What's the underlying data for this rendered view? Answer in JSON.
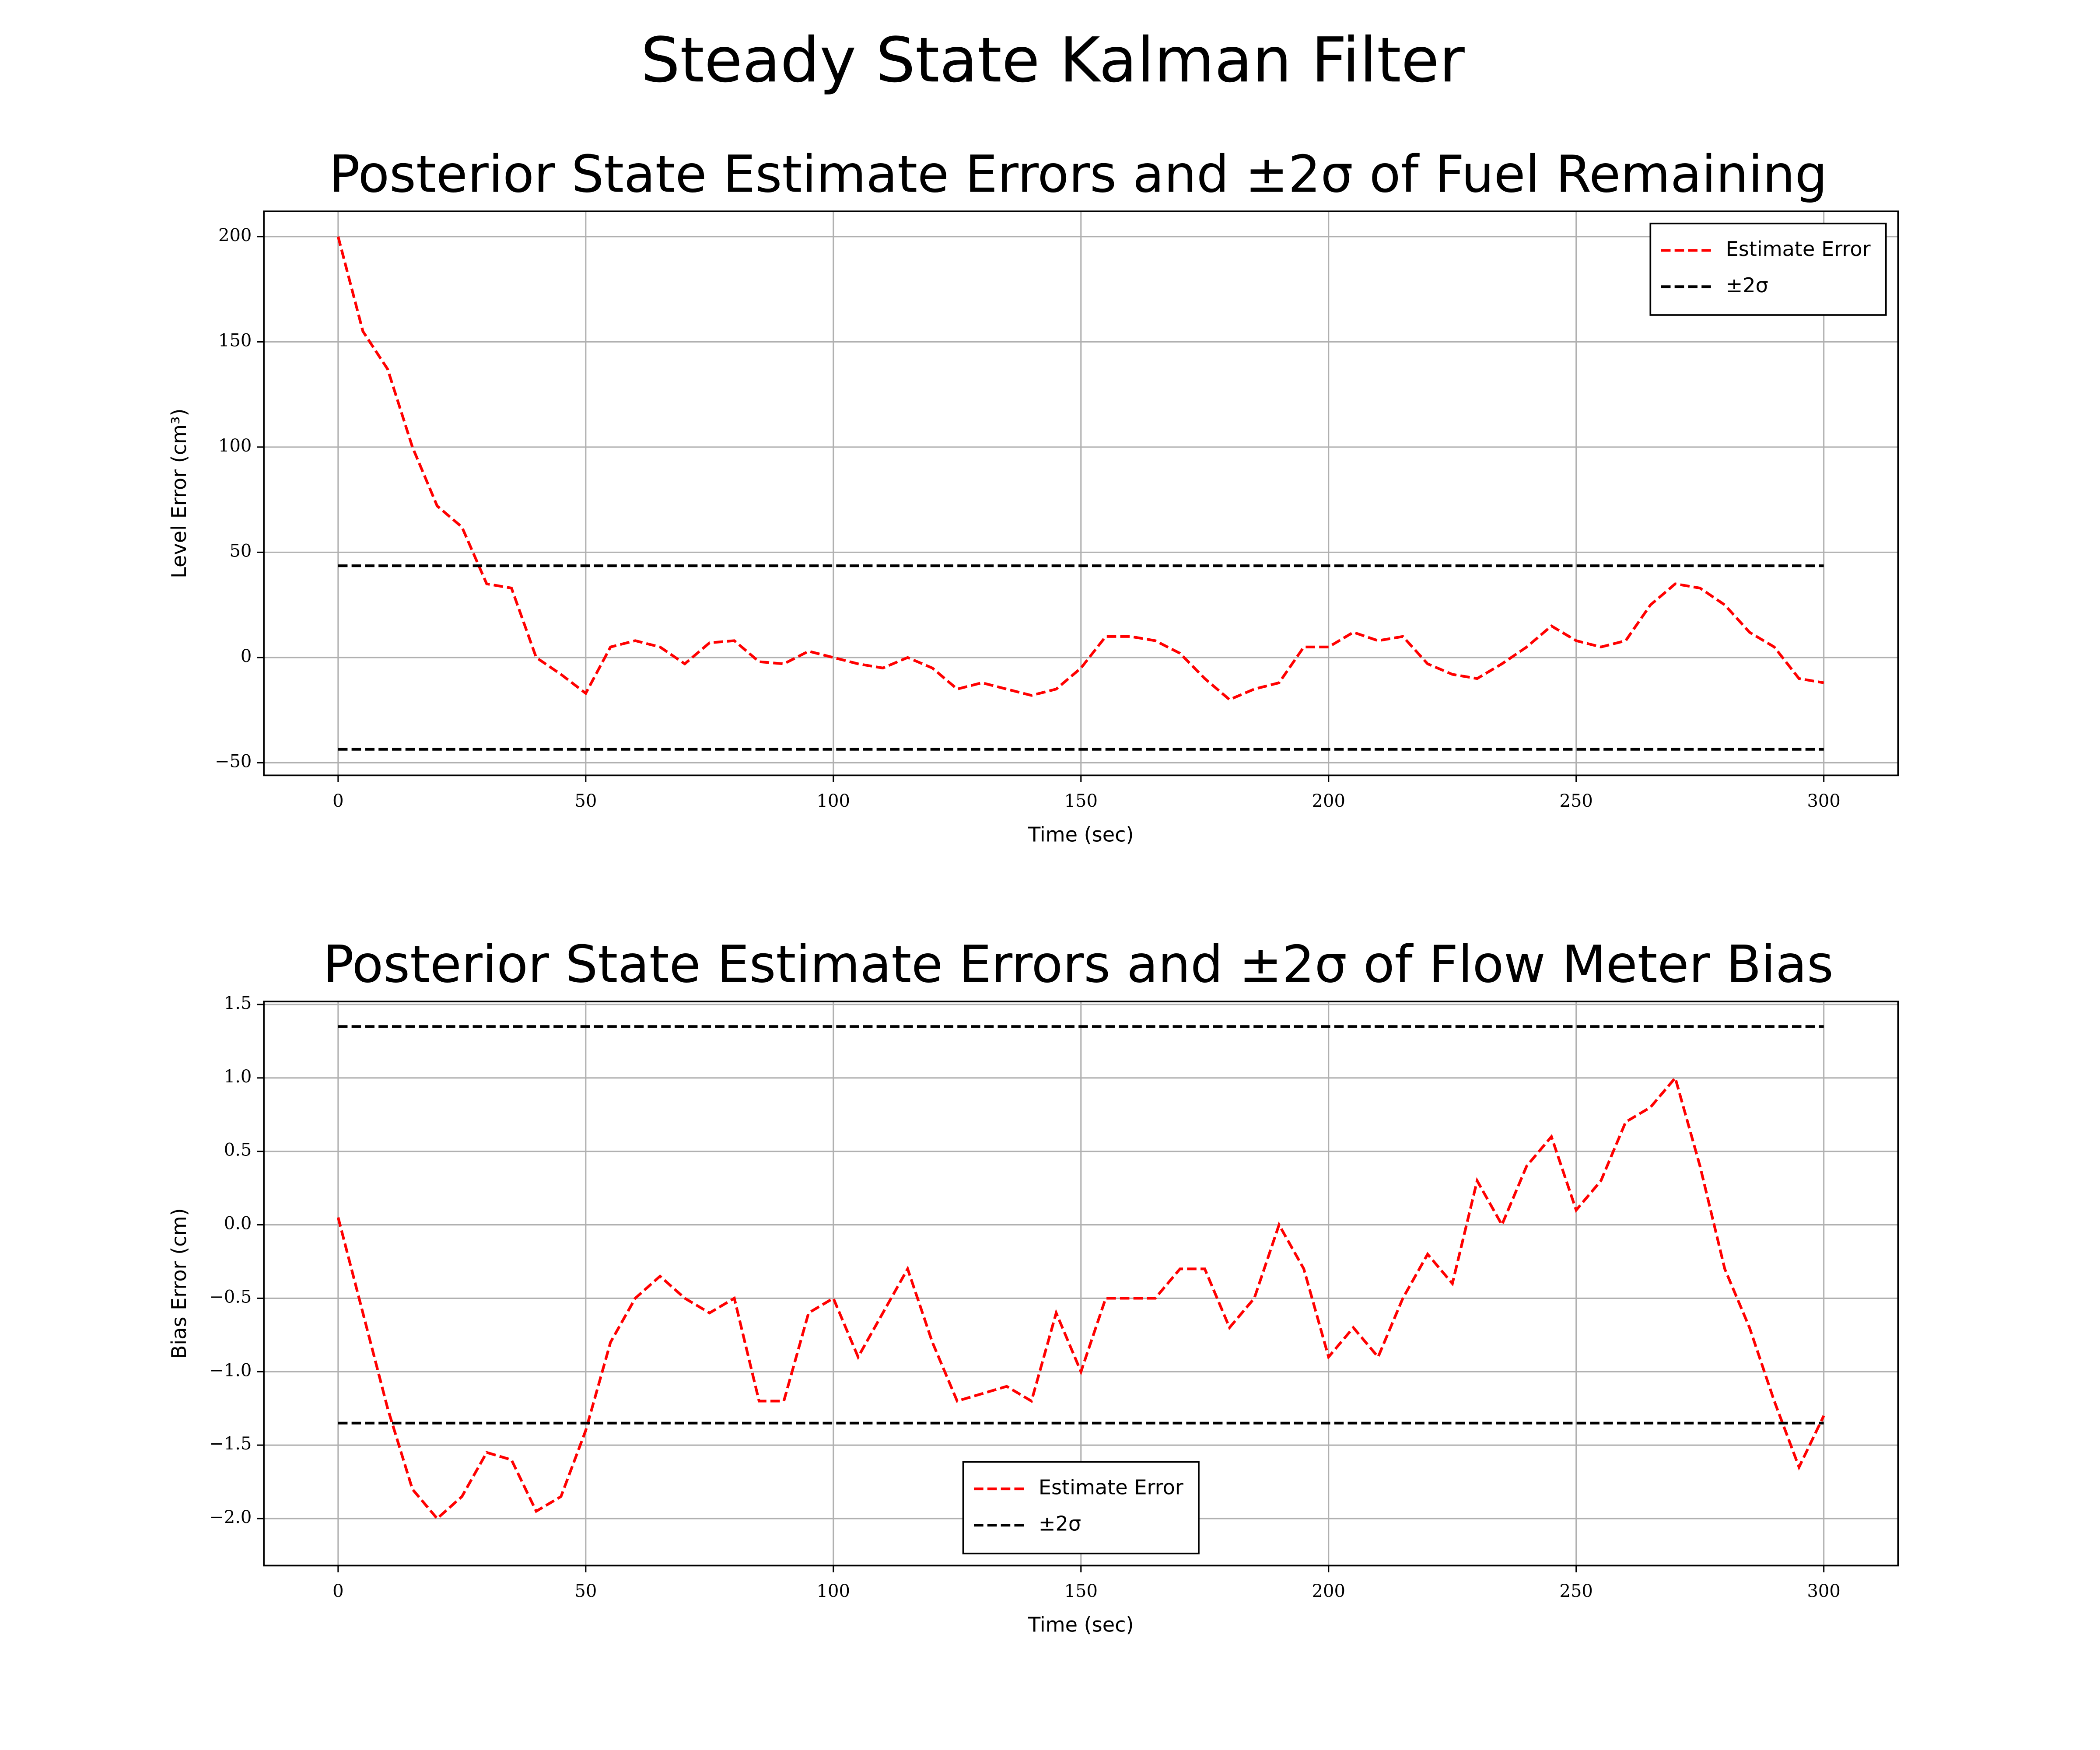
{
  "title": "Steady State Kalman Filter",
  "chart_data": [
    {
      "type": "line",
      "title": "Posterior State Estimate Errors and ±2σ of Fuel Remaining",
      "x_label": "Time (sec)",
      "y_label": "Level Error (cm³)",
      "xlim": [
        -15,
        315
      ],
      "ylim": [
        -56,
        212
      ],
      "xticks": [
        0,
        50,
        100,
        150,
        200,
        250,
        300
      ],
      "yticks": [
        {
          "value": -50,
          "label": "−50"
        },
        0,
        50,
        100,
        150,
        200
      ],
      "grid": true,
      "legend": "upper right",
      "series": [
        {
          "name": "Estimate Error",
          "color": "#ff0000",
          "x": [
            0,
            5,
            10,
            15,
            20,
            25,
            30,
            35,
            40,
            45,
            50,
            55,
            60,
            65,
            70,
            75,
            80,
            85,
            90,
            95,
            100,
            105,
            110,
            115,
            120,
            125,
            130,
            135,
            140,
            145,
            150,
            155,
            160,
            165,
            170,
            175,
            180,
            185,
            190,
            195,
            200,
            205,
            210,
            215,
            220,
            225,
            230,
            235,
            240,
            245,
            250,
            255,
            260,
            265,
            270,
            275,
            280,
            285,
            290,
            295,
            300
          ],
          "values": [
            200,
            155,
            137,
            100,
            72,
            62,
            35,
            33,
            0,
            -8,
            -17,
            5,
            8,
            5,
            -3,
            7,
            8,
            -2,
            -3,
            3,
            0,
            -3,
            -5,
            0,
            -5,
            -15,
            -12,
            -15,
            -18,
            -15,
            -5,
            10,
            10,
            8,
            2,
            -10,
            -20,
            -15,
            -12,
            5,
            5,
            12,
            8,
            10,
            -3,
            -8,
            -10,
            -3,
            5,
            15,
            8,
            5,
            8,
            25,
            35,
            33,
            25,
            12,
            5,
            -10,
            -12
          ]
        },
        {
          "name": "±2σ",
          "color": "#000000",
          "x": [
            0,
            300
          ],
          "values": [
            43.6,
            43.6
          ],
          "lower": [
            -43.6,
            -43.6
          ]
        }
      ]
    },
    {
      "type": "line",
      "title": "Posterior State Estimate Errors and ±2σ of Flow Meter Bias",
      "x_label": "Time (sec)",
      "y_label": "Bias Error (cm)",
      "xlim": [
        -15,
        315
      ],
      "ylim": [
        -2.32,
        1.52
      ],
      "xticks": [
        0,
        50,
        100,
        150,
        200,
        250,
        300
      ],
      "yticks": [
        {
          "value": -2,
          "label": "−2.0"
        },
        {
          "value": -1.5,
          "label": "−1.5"
        },
        {
          "value": -1,
          "label": "−1.0"
        },
        {
          "value": -0.5,
          "label": "−0.5"
        },
        {
          "value": 0,
          "label": "0.0"
        },
        0.5,
        {
          "value": 1,
          "label": "1.0"
        },
        1.5
      ],
      "grid": true,
      "legend": "lower center",
      "series": [
        {
          "name": "Estimate Error",
          "color": "#ff0000",
          "x": [
            0,
            5,
            10,
            15,
            20,
            25,
            30,
            35,
            40,
            45,
            50,
            55,
            60,
            65,
            70,
            75,
            80,
            85,
            90,
            95,
            100,
            105,
            110,
            115,
            120,
            125,
            130,
            135,
            140,
            145,
            150,
            155,
            160,
            165,
            170,
            175,
            180,
            185,
            190,
            195,
            200,
            205,
            210,
            215,
            220,
            225,
            230,
            235,
            240,
            245,
            250,
            255,
            260,
            265,
            270,
            275,
            280,
            285,
            290,
            295,
            300
          ],
          "values": [
            0.05,
            -0.6,
            -1.25,
            -1.8,
            -2.0,
            -1.85,
            -1.55,
            -1.6,
            -1.95,
            -1.85,
            -1.4,
            -0.8,
            -0.5,
            -0.35,
            -0.5,
            -0.6,
            -0.5,
            -1.2,
            -1.2,
            -0.6,
            -0.5,
            -0.9,
            -0.6,
            -0.3,
            -0.8,
            -1.2,
            -1.15,
            -1.1,
            -1.2,
            -0.6,
            -1.0,
            -0.5,
            -0.5,
            -0.5,
            -0.3,
            -0.3,
            -0.7,
            -0.5,
            0.0,
            -0.3,
            -0.9,
            -0.7,
            -0.9,
            -0.5,
            -0.2,
            -0.4,
            0.3,
            0.0,
            0.4,
            0.6,
            0.1,
            0.3,
            0.7,
            0.8,
            1.0,
            0.4,
            -0.3,
            -0.7,
            -1.2,
            -1.65,
            -1.3
          ]
        },
        {
          "name": "±2σ",
          "color": "#000000",
          "x": [
            0,
            300
          ],
          "values": [
            1.35,
            1.35
          ],
          "lower": [
            -1.35,
            -1.35
          ]
        }
      ]
    }
  ]
}
